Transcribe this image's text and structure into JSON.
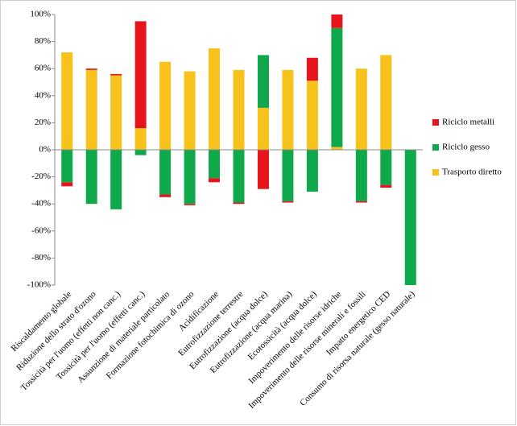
{
  "chart_data": {
    "type": "stacked_bar",
    "categories": [
      "Riscaldamento globale",
      "Riduzione dello strato d'ozono",
      "Tossicità per l'uomo (effetti non canc.)",
      "Tossicità per l'uomo (effetti canc.)",
      "Assunzione di materiale particolato",
      "Formazione fotochimica di ozono",
      "Acidificazione",
      "Eutrofizzazione terrestre",
      "Eutrofizzazione (acqua dolce)",
      "Eutrofizzazione (acqua marina)",
      "Ecotossicità (acqua dolce)",
      "Impoverimento delle risorse idriche",
      "Impoverimento delle risorse minerali e fossili",
      "Impatto energetico  CED",
      "Consumo di risorsa naturale (gesso naturale)"
    ],
    "series": [
      {
        "name": "Riciclo metalli",
        "color": "#e8141b",
        "values": [
          -3,
          1,
          1,
          79,
          -2,
          -1,
          -3,
          -1,
          -29,
          -1,
          17,
          10,
          -1,
          -2,
          0
        ]
      },
      {
        "name": "Riciclo gesso",
        "color": "#0fa84a",
        "values": [
          -24,
          -40,
          -44,
          -4,
          -33,
          -40,
          -21,
          -39,
          39,
          -38,
          -31,
          88,
          -38,
          -26,
          -100
        ]
      },
      {
        "name": "Trasporto diretto",
        "color": "#f8c21d",
        "values": [
          72,
          59,
          55,
          16,
          65,
          58,
          75,
          59,
          31,
          59,
          51,
          2,
          60,
          70,
          0
        ]
      }
    ],
    "ylim": [
      -100,
      100
    ],
    "yticks": [
      {
        "value": -100,
        "label": "-100%"
      },
      {
        "value": -80,
        "label": "-80%"
      },
      {
        "value": -60,
        "label": "-60%"
      },
      {
        "value": -40,
        "label": "-40%"
      },
      {
        "value": -20,
        "label": "-20%"
      },
      {
        "value": 0,
        "label": "0%"
      },
      {
        "value": 20,
        "label": "20%"
      },
      {
        "value": 40,
        "label": "40%"
      },
      {
        "value": 60,
        "label": "60%"
      },
      {
        "value": 80,
        "label": "80%"
      },
      {
        "value": 100,
        "label": "100%"
      }
    ],
    "legend": "right"
  }
}
